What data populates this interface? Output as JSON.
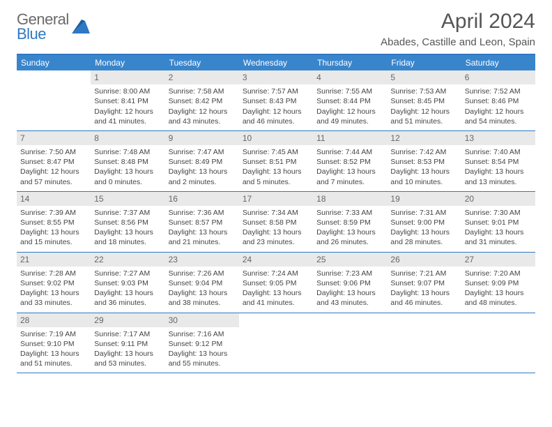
{
  "logo": {
    "word1": "General",
    "word2": "Blue"
  },
  "title": "April 2024",
  "location": "Abades, Castille and Leon, Spain",
  "weekdays": [
    "Sunday",
    "Monday",
    "Tuesday",
    "Wednesday",
    "Thursday",
    "Friday",
    "Saturday"
  ],
  "colors": {
    "accent": "#2f78c3",
    "header_bg": "#3985cc",
    "daynum_bg": "#e9e9e9",
    "text": "#444"
  },
  "weeks": [
    [
      {
        "n": "",
        "sunrise": "",
        "sunset": "",
        "daylight": ""
      },
      {
        "n": "1",
        "sunrise": "Sunrise: 8:00 AM",
        "sunset": "Sunset: 8:41 PM",
        "daylight": "Daylight: 12 hours and 41 minutes."
      },
      {
        "n": "2",
        "sunrise": "Sunrise: 7:58 AM",
        "sunset": "Sunset: 8:42 PM",
        "daylight": "Daylight: 12 hours and 43 minutes."
      },
      {
        "n": "3",
        "sunrise": "Sunrise: 7:57 AM",
        "sunset": "Sunset: 8:43 PM",
        "daylight": "Daylight: 12 hours and 46 minutes."
      },
      {
        "n": "4",
        "sunrise": "Sunrise: 7:55 AM",
        "sunset": "Sunset: 8:44 PM",
        "daylight": "Daylight: 12 hours and 49 minutes."
      },
      {
        "n": "5",
        "sunrise": "Sunrise: 7:53 AM",
        "sunset": "Sunset: 8:45 PM",
        "daylight": "Daylight: 12 hours and 51 minutes."
      },
      {
        "n": "6",
        "sunrise": "Sunrise: 7:52 AM",
        "sunset": "Sunset: 8:46 PM",
        "daylight": "Daylight: 12 hours and 54 minutes."
      }
    ],
    [
      {
        "n": "7",
        "sunrise": "Sunrise: 7:50 AM",
        "sunset": "Sunset: 8:47 PM",
        "daylight": "Daylight: 12 hours and 57 minutes."
      },
      {
        "n": "8",
        "sunrise": "Sunrise: 7:48 AM",
        "sunset": "Sunset: 8:48 PM",
        "daylight": "Daylight: 13 hours and 0 minutes."
      },
      {
        "n": "9",
        "sunrise": "Sunrise: 7:47 AM",
        "sunset": "Sunset: 8:49 PM",
        "daylight": "Daylight: 13 hours and 2 minutes."
      },
      {
        "n": "10",
        "sunrise": "Sunrise: 7:45 AM",
        "sunset": "Sunset: 8:51 PM",
        "daylight": "Daylight: 13 hours and 5 minutes."
      },
      {
        "n": "11",
        "sunrise": "Sunrise: 7:44 AM",
        "sunset": "Sunset: 8:52 PM",
        "daylight": "Daylight: 13 hours and 7 minutes."
      },
      {
        "n": "12",
        "sunrise": "Sunrise: 7:42 AM",
        "sunset": "Sunset: 8:53 PM",
        "daylight": "Daylight: 13 hours and 10 minutes."
      },
      {
        "n": "13",
        "sunrise": "Sunrise: 7:40 AM",
        "sunset": "Sunset: 8:54 PM",
        "daylight": "Daylight: 13 hours and 13 minutes."
      }
    ],
    [
      {
        "n": "14",
        "sunrise": "Sunrise: 7:39 AM",
        "sunset": "Sunset: 8:55 PM",
        "daylight": "Daylight: 13 hours and 15 minutes."
      },
      {
        "n": "15",
        "sunrise": "Sunrise: 7:37 AM",
        "sunset": "Sunset: 8:56 PM",
        "daylight": "Daylight: 13 hours and 18 minutes."
      },
      {
        "n": "16",
        "sunrise": "Sunrise: 7:36 AM",
        "sunset": "Sunset: 8:57 PM",
        "daylight": "Daylight: 13 hours and 21 minutes."
      },
      {
        "n": "17",
        "sunrise": "Sunrise: 7:34 AM",
        "sunset": "Sunset: 8:58 PM",
        "daylight": "Daylight: 13 hours and 23 minutes."
      },
      {
        "n": "18",
        "sunrise": "Sunrise: 7:33 AM",
        "sunset": "Sunset: 8:59 PM",
        "daylight": "Daylight: 13 hours and 26 minutes."
      },
      {
        "n": "19",
        "sunrise": "Sunrise: 7:31 AM",
        "sunset": "Sunset: 9:00 PM",
        "daylight": "Daylight: 13 hours and 28 minutes."
      },
      {
        "n": "20",
        "sunrise": "Sunrise: 7:30 AM",
        "sunset": "Sunset: 9:01 PM",
        "daylight": "Daylight: 13 hours and 31 minutes."
      }
    ],
    [
      {
        "n": "21",
        "sunrise": "Sunrise: 7:28 AM",
        "sunset": "Sunset: 9:02 PM",
        "daylight": "Daylight: 13 hours and 33 minutes."
      },
      {
        "n": "22",
        "sunrise": "Sunrise: 7:27 AM",
        "sunset": "Sunset: 9:03 PM",
        "daylight": "Daylight: 13 hours and 36 minutes."
      },
      {
        "n": "23",
        "sunrise": "Sunrise: 7:26 AM",
        "sunset": "Sunset: 9:04 PM",
        "daylight": "Daylight: 13 hours and 38 minutes."
      },
      {
        "n": "24",
        "sunrise": "Sunrise: 7:24 AM",
        "sunset": "Sunset: 9:05 PM",
        "daylight": "Daylight: 13 hours and 41 minutes."
      },
      {
        "n": "25",
        "sunrise": "Sunrise: 7:23 AM",
        "sunset": "Sunset: 9:06 PM",
        "daylight": "Daylight: 13 hours and 43 minutes."
      },
      {
        "n": "26",
        "sunrise": "Sunrise: 7:21 AM",
        "sunset": "Sunset: 9:07 PM",
        "daylight": "Daylight: 13 hours and 46 minutes."
      },
      {
        "n": "27",
        "sunrise": "Sunrise: 7:20 AM",
        "sunset": "Sunset: 9:09 PM",
        "daylight": "Daylight: 13 hours and 48 minutes."
      }
    ],
    [
      {
        "n": "28",
        "sunrise": "Sunrise: 7:19 AM",
        "sunset": "Sunset: 9:10 PM",
        "daylight": "Daylight: 13 hours and 51 minutes."
      },
      {
        "n": "29",
        "sunrise": "Sunrise: 7:17 AM",
        "sunset": "Sunset: 9:11 PM",
        "daylight": "Daylight: 13 hours and 53 minutes."
      },
      {
        "n": "30",
        "sunrise": "Sunrise: 7:16 AM",
        "sunset": "Sunset: 9:12 PM",
        "daylight": "Daylight: 13 hours and 55 minutes."
      },
      {
        "n": "",
        "sunrise": "",
        "sunset": "",
        "daylight": ""
      },
      {
        "n": "",
        "sunrise": "",
        "sunset": "",
        "daylight": ""
      },
      {
        "n": "",
        "sunrise": "",
        "sunset": "",
        "daylight": ""
      },
      {
        "n": "",
        "sunrise": "",
        "sunset": "",
        "daylight": ""
      }
    ]
  ]
}
